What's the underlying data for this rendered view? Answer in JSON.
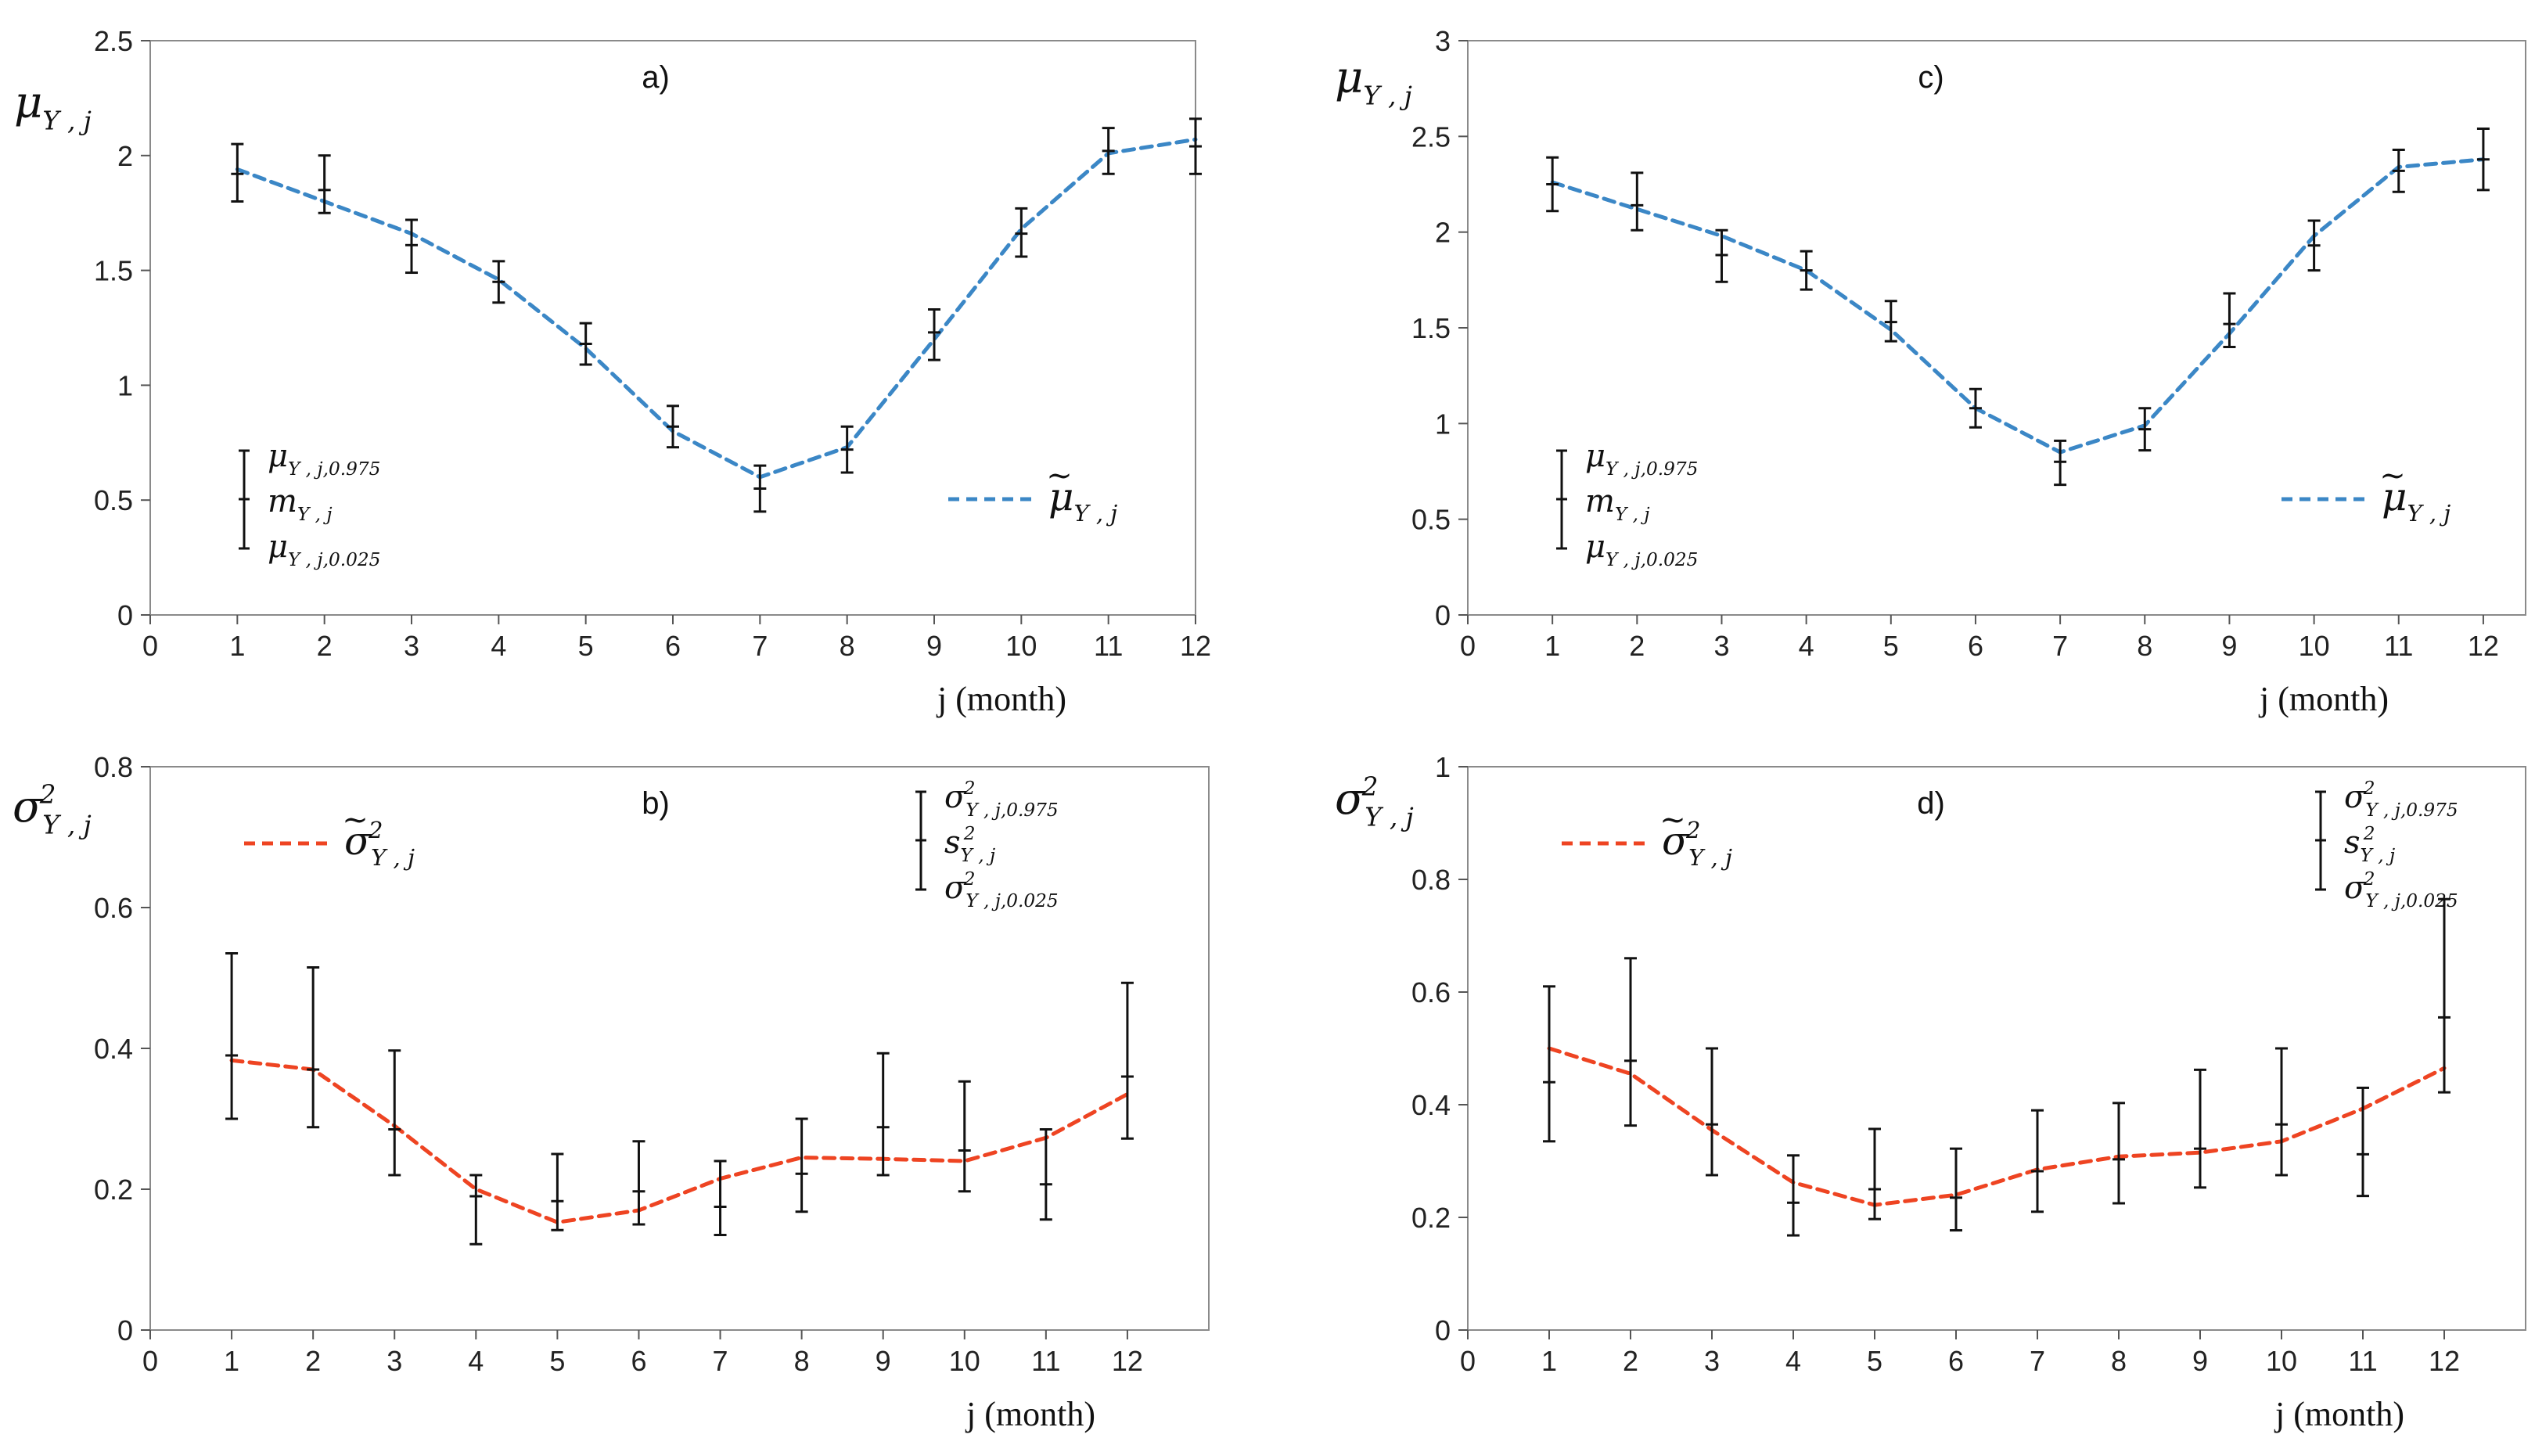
{
  "figure": "Monthly parameter estimates with 95% confidence intervals",
  "chart_data": [
    {
      "type": "line",
      "panel_label": "a)",
      "xlabel": "j  (month)",
      "ylabel": {
        "symbol": "μ",
        "sub": "Y , j",
        "tilde": false,
        "sup": ""
      },
      "xlim": [
        0,
        12
      ],
      "ylim": [
        0,
        2.5
      ],
      "xticks": [
        "0",
        "1",
        "2",
        "3",
        "4",
        "5",
        "6",
        "7",
        "8",
        "9",
        "10",
        "11",
        "12"
      ],
      "yticks": [
        "0",
        "0.5",
        "1",
        "1.5",
        "2",
        "2.5"
      ],
      "ytick_values": [
        0,
        0.5,
        1,
        1.5,
        2,
        2.5
      ],
      "x": [
        1,
        2,
        3,
        4,
        5,
        6,
        7,
        8,
        9,
        10,
        11,
        12
      ],
      "line_color": "#3b87c6",
      "line_series": {
        "name": "μ̃_{Y,j}",
        "values": [
          1.94,
          1.8,
          1.66,
          1.46,
          1.16,
          0.8,
          0.6,
          0.73,
          1.2,
          1.68,
          2.01,
          2.07
        ]
      },
      "error_series": {
        "mid": [
          1.92,
          1.85,
          1.61,
          1.45,
          1.18,
          0.82,
          0.55,
          0.72,
          1.23,
          1.66,
          2.02,
          2.04
        ],
        "lower": [
          1.8,
          1.75,
          1.49,
          1.36,
          1.09,
          0.73,
          0.45,
          0.62,
          1.11,
          1.56,
          1.92,
          1.92
        ],
        "upper": [
          2.05,
          2.0,
          1.72,
          1.54,
          1.27,
          0.91,
          0.65,
          0.82,
          1.33,
          1.77,
          2.12,
          2.16
        ]
      },
      "legend_errbar": {
        "upper": {
          "symbol": "μ",
          "sub": "Y , j,0.975",
          "sup": ""
        },
        "mid": {
          "symbol": "m",
          "sub": "Y , j",
          "sup": ""
        },
        "lower": {
          "symbol": "μ",
          "sub": "Y , j,0.025",
          "sup": ""
        },
        "position": "bottom-left"
      },
      "legend_line": {
        "symbol": "μ",
        "sub": "Y , j",
        "sup": "",
        "tilde": true,
        "position": "bottom-right"
      }
    },
    {
      "type": "line",
      "panel_label": "b)",
      "xlabel": "j  (month)",
      "ylabel": {
        "symbol": "σ",
        "sub": "Y , j",
        "tilde": false,
        "sup": "2"
      },
      "xlim": [
        0,
        13
      ],
      "ylim": [
        0,
        0.8
      ],
      "xticks": [
        "0",
        "1",
        "2",
        "3",
        "4",
        "5",
        "6",
        "7",
        "8",
        "9",
        "10",
        "11",
        "12"
      ],
      "yticks": [
        "0",
        "0.2",
        "0.4",
        "0.6",
        "0.8"
      ],
      "ytick_values": [
        0,
        0.2,
        0.4,
        0.6,
        0.8
      ],
      "x": [
        1,
        2,
        3,
        4,
        5,
        6,
        7,
        8,
        9,
        10,
        11,
        12
      ],
      "line_color": "#ee4422",
      "line_series": {
        "name": "σ̃²_{Y,j}",
        "values": [
          0.383,
          0.37,
          0.29,
          0.2,
          0.153,
          0.17,
          0.215,
          0.245,
          0.243,
          0.24,
          0.273,
          0.335
        ]
      },
      "error_series": {
        "mid": [
          0.39,
          0.37,
          0.285,
          0.19,
          0.183,
          0.197,
          0.175,
          0.222,
          0.288,
          0.255,
          0.207,
          0.36
        ],
        "lower": [
          0.3,
          0.288,
          0.22,
          0.122,
          0.142,
          0.15,
          0.135,
          0.168,
          0.22,
          0.197,
          0.157,
          0.272
        ],
        "upper": [
          0.535,
          0.515,
          0.397,
          0.22,
          0.25,
          0.268,
          0.24,
          0.3,
          0.393,
          0.353,
          0.285,
          0.493
        ]
      },
      "legend_errbar": {
        "upper": {
          "symbol": "σ",
          "sub": "Y , j,0.975",
          "sup": "2"
        },
        "mid": {
          "symbol": "s",
          "sub": "Y , j",
          "sup": "2"
        },
        "lower": {
          "symbol": "σ",
          "sub": "Y , j,0.025",
          "sup": "2"
        },
        "position": "top-right"
      },
      "legend_line": {
        "symbol": "σ",
        "sub": "Y , j",
        "sup": "2",
        "tilde": true,
        "position": "top-left"
      }
    },
    {
      "type": "line",
      "panel_label": "c)",
      "xlabel": "j  (month)",
      "ylabel": {
        "symbol": "μ",
        "sub": "Y , j",
        "tilde": false,
        "sup": ""
      },
      "xlim": [
        0,
        12.5
      ],
      "ylim": [
        0,
        3
      ],
      "xticks": [
        "0",
        "1",
        "2",
        "3",
        "4",
        "5",
        "6",
        "7",
        "8",
        "9",
        "10",
        "11",
        "12"
      ],
      "yticks": [
        "0",
        "0.5",
        "1",
        "1.5",
        "2",
        "2.5",
        "3"
      ],
      "ytick_values": [
        0,
        0.5,
        1,
        1.5,
        2,
        2.5,
        3
      ],
      "x": [
        1,
        2,
        3,
        4,
        5,
        6,
        7,
        8,
        9,
        10,
        11,
        12
      ],
      "line_color": "#3b87c6",
      "line_series": {
        "name": "μ̃_{Y,j}",
        "values": [
          2.26,
          2.12,
          1.98,
          1.8,
          1.49,
          1.08,
          0.85,
          0.99,
          1.47,
          1.98,
          2.34,
          2.38
        ]
      },
      "error_series": {
        "mid": [
          2.25,
          2.14,
          1.88,
          1.8,
          1.53,
          1.08,
          0.8,
          0.97,
          1.52,
          1.93,
          2.32,
          2.38
        ],
        "lower": [
          2.11,
          2.01,
          1.74,
          1.7,
          1.43,
          0.98,
          0.68,
          0.86,
          1.4,
          1.8,
          2.21,
          2.22
        ],
        "upper": [
          2.39,
          2.31,
          2.01,
          1.9,
          1.64,
          1.18,
          0.91,
          1.08,
          1.68,
          2.06,
          2.43,
          2.54
        ]
      },
      "legend_errbar": {
        "upper": {
          "symbol": "μ",
          "sub": "Y , j,0.975",
          "sup": ""
        },
        "mid": {
          "symbol": "m",
          "sub": "Y , j",
          "sup": ""
        },
        "lower": {
          "symbol": "μ",
          "sub": "Y , j,0.025",
          "sup": ""
        },
        "position": "bottom-left"
      },
      "legend_line": {
        "symbol": "μ",
        "sub": "Y , j",
        "sup": "",
        "tilde": true,
        "position": "bottom-right"
      }
    },
    {
      "type": "line",
      "panel_label": "d)",
      "xlabel": "j  (month)",
      "ylabel": {
        "symbol": "σ",
        "sub": "Y , j",
        "tilde": false,
        "sup": "2"
      },
      "xlim": [
        0,
        13
      ],
      "ylim": [
        0,
        1
      ],
      "xticks": [
        "0",
        "1",
        "2",
        "3",
        "4",
        "5",
        "6",
        "7",
        "8",
        "9",
        "10",
        "11",
        "12"
      ],
      "yticks": [
        "0",
        "0.2",
        "0.4",
        "0.6",
        "0.8",
        "1"
      ],
      "ytick_values": [
        0,
        0.2,
        0.4,
        0.6,
        0.8,
        1
      ],
      "x": [
        1,
        2,
        3,
        4,
        5,
        6,
        7,
        8,
        9,
        10,
        11,
        12
      ],
      "line_color": "#ee4422",
      "line_series": {
        "name": "σ̃²_{Y,j}",
        "values": [
          0.5,
          0.455,
          0.355,
          0.262,
          0.222,
          0.24,
          0.285,
          0.308,
          0.315,
          0.335,
          0.393,
          0.465
        ]
      },
      "error_series": {
        "mid": [
          0.44,
          0.478,
          0.365,
          0.226,
          0.25,
          0.235,
          0.282,
          0.303,
          0.322,
          0.365,
          0.312,
          0.555
        ],
        "lower": [
          0.335,
          0.363,
          0.275,
          0.168,
          0.197,
          0.177,
          0.21,
          0.225,
          0.253,
          0.275,
          0.238,
          0.422
        ],
        "upper": [
          0.61,
          0.66,
          0.5,
          0.31,
          0.357,
          0.322,
          0.39,
          0.403,
          0.462,
          0.5,
          0.43,
          0.765
        ]
      },
      "legend_errbar": {
        "upper": {
          "symbol": "σ",
          "sub": "Y , j,0.975",
          "sup": "2"
        },
        "mid": {
          "symbol": "s",
          "sub": "Y , j",
          "sup": "2"
        },
        "lower": {
          "symbol": "σ",
          "sub": "Y , j,0.025",
          "sup": "2"
        },
        "position": "top-right"
      },
      "legend_line": {
        "symbol": "σ",
        "sub": "Y , j",
        "sup": "2",
        "tilde": true,
        "position": "top-left"
      }
    }
  ]
}
